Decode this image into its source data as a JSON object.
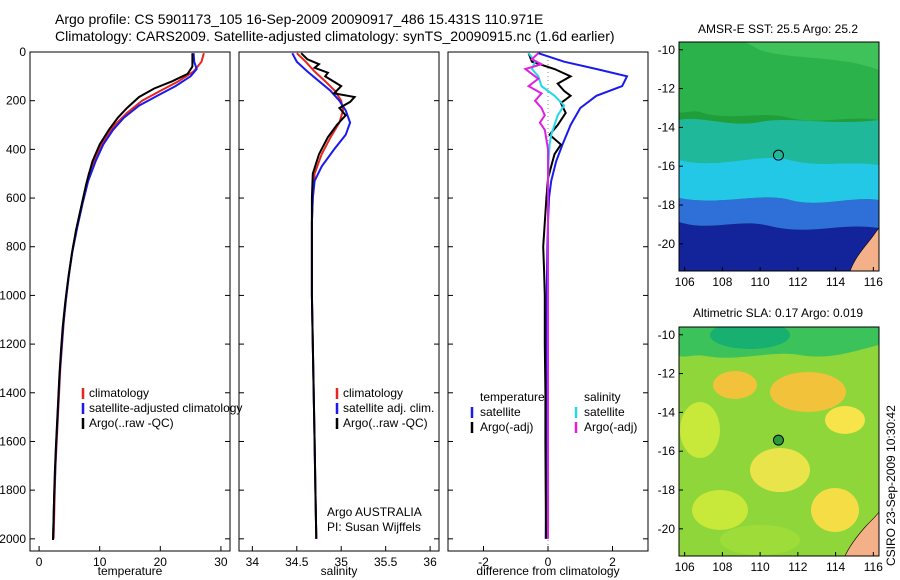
{
  "header": {
    "line1": "Argo profile: CS 5901173_105 16-Sep-2009 20090917_486 15.431S 110.971E",
    "line2": "Climatology: CARS2009. Satellite-adjusted climatology: synTS_20090915.nc (1.6d earlier)"
  },
  "colors": {
    "climatology": "#e8251d",
    "satellite": "#1a1aee",
    "argo": "#000000",
    "sat_diff": "#22d8e8",
    "argo_diff": "#e020e0"
  },
  "chart_data": [
    {
      "id": "temperature",
      "type": "line",
      "xlabel": "temperature",
      "xlim": [
        -1.5,
        31.5
      ],
      "ylim": [
        2050,
        0
      ],
      "xticks": [
        0,
        10,
        20,
        30
      ],
      "yticks": [
        0,
        200,
        400,
        600,
        800,
        1000,
        1200,
        1400,
        1600,
        1800,
        2000
      ],
      "legend": [
        "climatology",
        "satellite-adjusted climatology",
        "Argo(..raw -QC)"
      ],
      "series": [
        {
          "name": "climatology",
          "color": "#e8251d",
          "points": [
            [
              27.2,
              5
            ],
            [
              26.8,
              40
            ],
            [
              25.5,
              80
            ],
            [
              23,
              120
            ],
            [
              20,
              160
            ],
            [
              17,
              200
            ],
            [
              14.5,
              250
            ],
            [
              12.5,
              300
            ],
            [
              11,
              350
            ],
            [
              9.5,
              420
            ],
            [
              8.2,
              500
            ],
            [
              7.3,
              600
            ],
            [
              6.4,
              700
            ],
            [
              5.6,
              800
            ],
            [
              5,
              900
            ],
            [
              4.5,
              1000
            ],
            [
              4.1,
              1100
            ],
            [
              3.8,
              1200
            ],
            [
              3.5,
              1300
            ],
            [
              3.3,
              1400
            ],
            [
              3.1,
              1500
            ],
            [
              2.9,
              1600
            ],
            [
              2.7,
              1700
            ],
            [
              2.6,
              1800
            ],
            [
              2.5,
              1900
            ],
            [
              2.4,
              2000
            ]
          ]
        },
        {
          "name": "satellite-adjusted climatology",
          "color": "#1a1aee",
          "points": [
            [
              25.5,
              5
            ],
            [
              25.6,
              40
            ],
            [
              26,
              70
            ],
            [
              25,
              100
            ],
            [
              22.5,
              140
            ],
            [
              19.5,
              180
            ],
            [
              16.5,
              220
            ],
            [
              14,
              270
            ],
            [
              12.2,
              320
            ],
            [
              10.6,
              380
            ],
            [
              9.3,
              450
            ],
            [
              8.1,
              530
            ],
            [
              7.2,
              620
            ],
            [
              6.3,
              720
            ],
            [
              5.5,
              820
            ],
            [
              4.9,
              920
            ],
            [
              4.4,
              1020
            ],
            [
              4,
              1120
            ],
            [
              3.7,
              1220
            ],
            [
              3.4,
              1320
            ],
            [
              3.2,
              1420
            ],
            [
              3,
              1520
            ],
            [
              2.8,
              1620
            ],
            [
              2.65,
              1720
            ],
            [
              2.5,
              1820
            ],
            [
              2.4,
              1920
            ],
            [
              2.3,
              2000
            ]
          ]
        },
        {
          "name": "Argo(..raw -QC)",
          "color": "#000000",
          "points": [
            [
              25.3,
              5
            ],
            [
              25.3,
              60
            ],
            [
              24.5,
              90
            ],
            [
              22,
              120
            ],
            [
              19,
              150
            ],
            [
              16.5,
              185
            ],
            [
              14.5,
              230
            ],
            [
              13,
              270
            ],
            [
              11.5,
              320
            ],
            [
              10,
              380
            ],
            [
              8.8,
              450
            ],
            [
              7.8,
              540
            ],
            [
              7,
              630
            ],
            [
              6.1,
              730
            ],
            [
              5.4,
              830
            ],
            [
              4.8,
              930
            ],
            [
              4.3,
              1030
            ],
            [
              3.9,
              1130
            ],
            [
              3.6,
              1230
            ],
            [
              3.35,
              1330
            ],
            [
              3.15,
              1430
            ],
            [
              2.95,
              1530
            ],
            [
              2.75,
              1630
            ],
            [
              2.6,
              1730
            ],
            [
              2.48,
              1830
            ],
            [
              2.38,
              1930
            ],
            [
              2.3,
              2005
            ]
          ]
        }
      ]
    },
    {
      "id": "salinity",
      "type": "line",
      "xlabel": "salinity",
      "xlim": [
        33.85,
        36.1
      ],
      "ylim": [
        2050,
        0
      ],
      "xticks": [
        34,
        34.5,
        35,
        35.5,
        36
      ],
      "xtick_labels": [
        "34",
        "34.5",
        "35",
        "35.5",
        "36"
      ],
      "legend": [
        "climatology",
        "satellite adj. clim.",
        "Argo(..raw -QC)"
      ],
      "annotation": [
        "Argo AUSTRALIA",
        "PI: Susan Wijffels"
      ],
      "series": [
        {
          "name": "climatology",
          "color": "#e8251d",
          "points": [
            [
              34.5,
              5
            ],
            [
              34.6,
              40
            ],
            [
              34.7,
              80
            ],
            [
              34.82,
              120
            ],
            [
              34.93,
              160
            ],
            [
              35,
              200
            ],
            [
              35.02,
              240
            ],
            [
              34.98,
              290
            ],
            [
              34.88,
              350
            ],
            [
              34.78,
              420
            ],
            [
              34.7,
              500
            ],
            [
              34.68,
              600
            ],
            [
              34.67,
              700
            ],
            [
              34.67,
              800
            ],
            [
              34.67,
              1000
            ],
            [
              34.68,
              1200
            ],
            [
              34.69,
              1400
            ],
            [
              34.7,
              1600
            ],
            [
              34.71,
              1800
            ],
            [
              34.72,
              2000
            ]
          ]
        },
        {
          "name": "satellite adj. clim.",
          "color": "#1a1aee",
          "points": [
            [
              34.45,
              5
            ],
            [
              34.5,
              40
            ],
            [
              34.62,
              80
            ],
            [
              34.75,
              120
            ],
            [
              34.88,
              160
            ],
            [
              34.98,
              200
            ],
            [
              35.05,
              240
            ],
            [
              35.1,
              290
            ],
            [
              35.05,
              340
            ],
            [
              34.92,
              400
            ],
            [
              34.78,
              470
            ],
            [
              34.7,
              530
            ],
            [
              34.68,
              600
            ],
            [
              34.67,
              700
            ],
            [
              34.67,
              800
            ],
            [
              34.67,
              1000
            ],
            [
              34.68,
              1200
            ],
            [
              34.69,
              1400
            ],
            [
              34.7,
              1600
            ],
            [
              34.71,
              1800
            ],
            [
              34.72,
              2000
            ]
          ]
        },
        {
          "name": "Argo(..raw -QC)",
          "color": "#000000",
          "points": [
            [
              34.55,
              5
            ],
            [
              34.62,
              30
            ],
            [
              34.75,
              50
            ],
            [
              34.7,
              65
            ],
            [
              34.85,
              85
            ],
            [
              34.82,
              100
            ],
            [
              35.0,
              140
            ],
            [
              34.92,
              170
            ],
            [
              35.15,
              185
            ],
            [
              35.1,
              205
            ],
            [
              34.98,
              230
            ],
            [
              35.05,
              260
            ],
            [
              34.95,
              300
            ],
            [
              34.85,
              350
            ],
            [
              34.75,
              420
            ],
            [
              34.68,
              500
            ],
            [
              34.67,
              600
            ],
            [
              34.67,
              700
            ],
            [
              34.67,
              800
            ],
            [
              34.67,
              1000
            ],
            [
              34.68,
              1200
            ],
            [
              34.69,
              1400
            ],
            [
              34.7,
              1600
            ],
            [
              34.71,
              1800
            ],
            [
              34.72,
              2000
            ]
          ]
        }
      ]
    },
    {
      "id": "difference",
      "type": "line",
      "xlabel": "difference from climatology",
      "xlim": [
        -3.1,
        3.1
      ],
      "ylim": [
        2050,
        0
      ],
      "xticks": [
        -2,
        0,
        2
      ],
      "legend_groups": [
        {
          "title": "temperature",
          "items": [
            "satellite",
            "Argo(-adj)"
          ]
        },
        {
          "title": "salinity",
          "items": [
            "satellite",
            "Argo(-adj)"
          ]
        }
      ],
      "series": [
        {
          "name": "temperature satellite",
          "color": "#1a1aee",
          "points": [
            [
              -0.3,
              5
            ],
            [
              0.5,
              40
            ],
            [
              1.5,
              70
            ],
            [
              2.45,
              100
            ],
            [
              2.3,
              140
            ],
            [
              1.5,
              180
            ],
            [
              1.0,
              230
            ],
            [
              0.7,
              300
            ],
            [
              0.45,
              380
            ],
            [
              0.25,
              450
            ],
            [
              0.1,
              530
            ],
            [
              0.03,
              600
            ],
            [
              0.0,
              700
            ],
            [
              -0.02,
              800
            ],
            [
              -0.04,
              1000
            ],
            [
              -0.05,
              1200
            ],
            [
              -0.05,
              1400
            ],
            [
              -0.05,
              1600
            ],
            [
              -0.06,
              1800
            ],
            [
              -0.07,
              2000
            ]
          ]
        },
        {
          "name": "temperature Argo(-adj)",
          "color": "#000000",
          "points": [
            [
              -0.6,
              5
            ],
            [
              -0.5,
              40
            ],
            [
              0.2,
              70
            ],
            [
              0.7,
              100
            ],
            [
              0.3,
              130
            ],
            [
              0.5,
              160
            ],
            [
              0.7,
              180
            ],
            [
              0.4,
              210
            ],
            [
              0.55,
              250
            ],
            [
              0.3,
              300
            ],
            [
              0.05,
              340
            ],
            [
              0.4,
              380
            ],
            [
              0.2,
              420
            ],
            [
              0.1,
              470
            ],
            [
              0.0,
              520
            ],
            [
              -0.05,
              600
            ],
            [
              -0.1,
              700
            ],
            [
              -0.15,
              800
            ],
            [
              -0.12,
              900
            ],
            [
              -0.1,
              1000
            ],
            [
              -0.1,
              1200
            ],
            [
              -0.08,
              1400
            ],
            [
              -0.08,
              1600
            ],
            [
              -0.07,
              1800
            ],
            [
              -0.06,
              2000
            ]
          ]
        },
        {
          "name": "salinity satellite",
          "color": "#22d8e8",
          "points": [
            [
              -0.6,
              5
            ],
            [
              -0.4,
              40
            ],
            [
              -0.5,
              70
            ],
            [
              -0.3,
              100
            ],
            [
              -0.2,
              140
            ],
            [
              0.2,
              180
            ],
            [
              0.5,
              220
            ],
            [
              0.3,
              260
            ],
            [
              0.2,
              300
            ],
            [
              0.1,
              340
            ],
            [
              0.05,
              380
            ],
            [
              0.02,
              450
            ],
            [
              0.0,
              550
            ],
            [
              0.0,
              700
            ],
            [
              0.0,
              900
            ],
            [
              0.0,
              1200
            ],
            [
              0.0,
              1500
            ],
            [
              0.0,
              1800
            ],
            [
              0.0,
              2000
            ]
          ]
        },
        {
          "name": "salinity Argo(-adj)",
          "color": "#e020e0",
          "points": [
            [
              -0.3,
              5
            ],
            [
              -0.5,
              30
            ],
            [
              -0.2,
              50
            ],
            [
              -0.7,
              70
            ],
            [
              -0.5,
              90
            ],
            [
              -0.3,
              110
            ],
            [
              -0.6,
              140
            ],
            [
              -0.2,
              170
            ],
            [
              -0.4,
              200
            ],
            [
              -0.2,
              230
            ],
            [
              -0.1,
              260
            ],
            [
              -0.25,
              290
            ],
            [
              -0.1,
              320
            ],
            [
              -0.05,
              360
            ],
            [
              0.0,
              400
            ],
            [
              0.0,
              500
            ],
            [
              0.0,
              700
            ],
            [
              0.0,
              1000
            ],
            [
              0.0,
              1400
            ],
            [
              0.0,
              2000
            ]
          ]
        }
      ]
    },
    {
      "id": "sst_map",
      "type": "heatmap",
      "title": "AMSR-E SST: 25.5 Argo: 25.2",
      "xlim": [
        105.7,
        116.3
      ],
      "ylim": [
        -21.4,
        -9.6
      ],
      "xticks": [
        106,
        108,
        110,
        112,
        114,
        116
      ],
      "yticks": [
        -10,
        -12,
        -14,
        -16,
        -18,
        -20
      ],
      "marker": {
        "lon": 110.971,
        "lat": -15.431,
        "style": "open-circle"
      }
    },
    {
      "id": "sla_map",
      "type": "heatmap",
      "title": "Altimetric SLA: 0.17 Argo: 0.019",
      "xlim": [
        105.7,
        116.3
      ],
      "ylim": [
        -21.4,
        -9.6
      ],
      "xticks": [
        106,
        108,
        110,
        112,
        114,
        116
      ],
      "yticks": [
        -10,
        -12,
        -14,
        -16,
        -18,
        -20
      ],
      "marker": {
        "lon": 110.971,
        "lat": -15.431,
        "style": "filled-circle"
      }
    }
  ],
  "side_stamp": "CSIRO 23-Sep-2009 10:30:42"
}
